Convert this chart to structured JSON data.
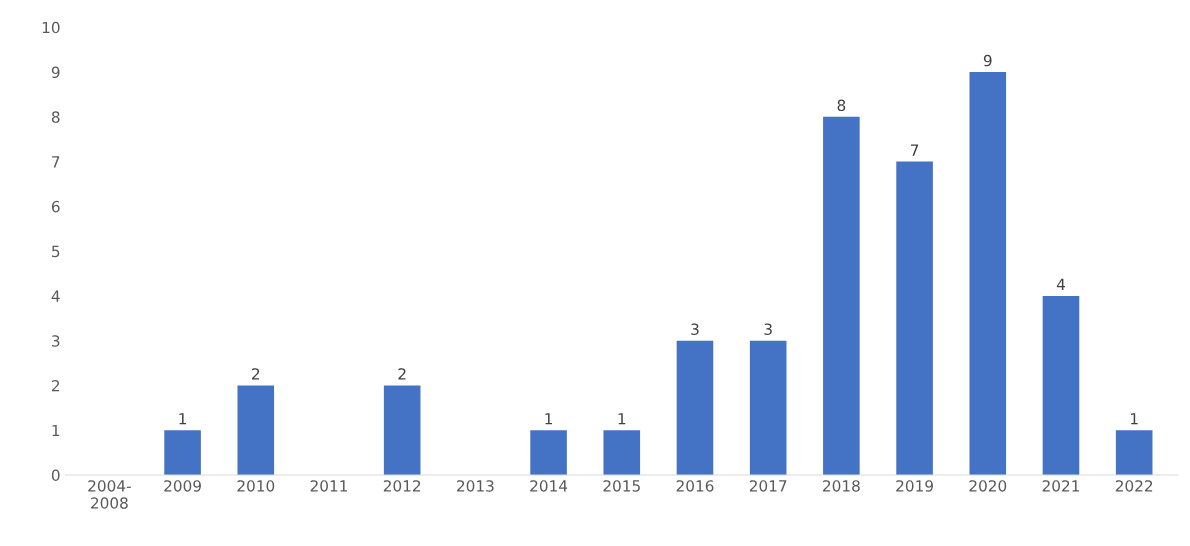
{
  "chart_data": {
    "type": "bar",
    "categories": [
      "2004-\n2008",
      "2009",
      "2010",
      "2011",
      "2012",
      "2013",
      "2014",
      "2015",
      "2016",
      "2017",
      "2018",
      "2019",
      "2020",
      "2021",
      "2022"
    ],
    "values": [
      0,
      1,
      2,
      0,
      2,
      0,
      1,
      1,
      3,
      3,
      8,
      7,
      9,
      4,
      1
    ],
    "value_labels": [
      null,
      "1",
      "2",
      null,
      "2",
      null,
      "1",
      "1",
      "3",
      "3",
      "8",
      "7",
      "9",
      "4",
      "1"
    ],
    "color": "#4472c4",
    "ylim": [
      0,
      10
    ],
    "yticks": [
      0,
      1,
      2,
      3,
      4,
      5,
      6,
      7,
      8,
      9,
      10
    ],
    "grid": false,
    "legend": false
  }
}
